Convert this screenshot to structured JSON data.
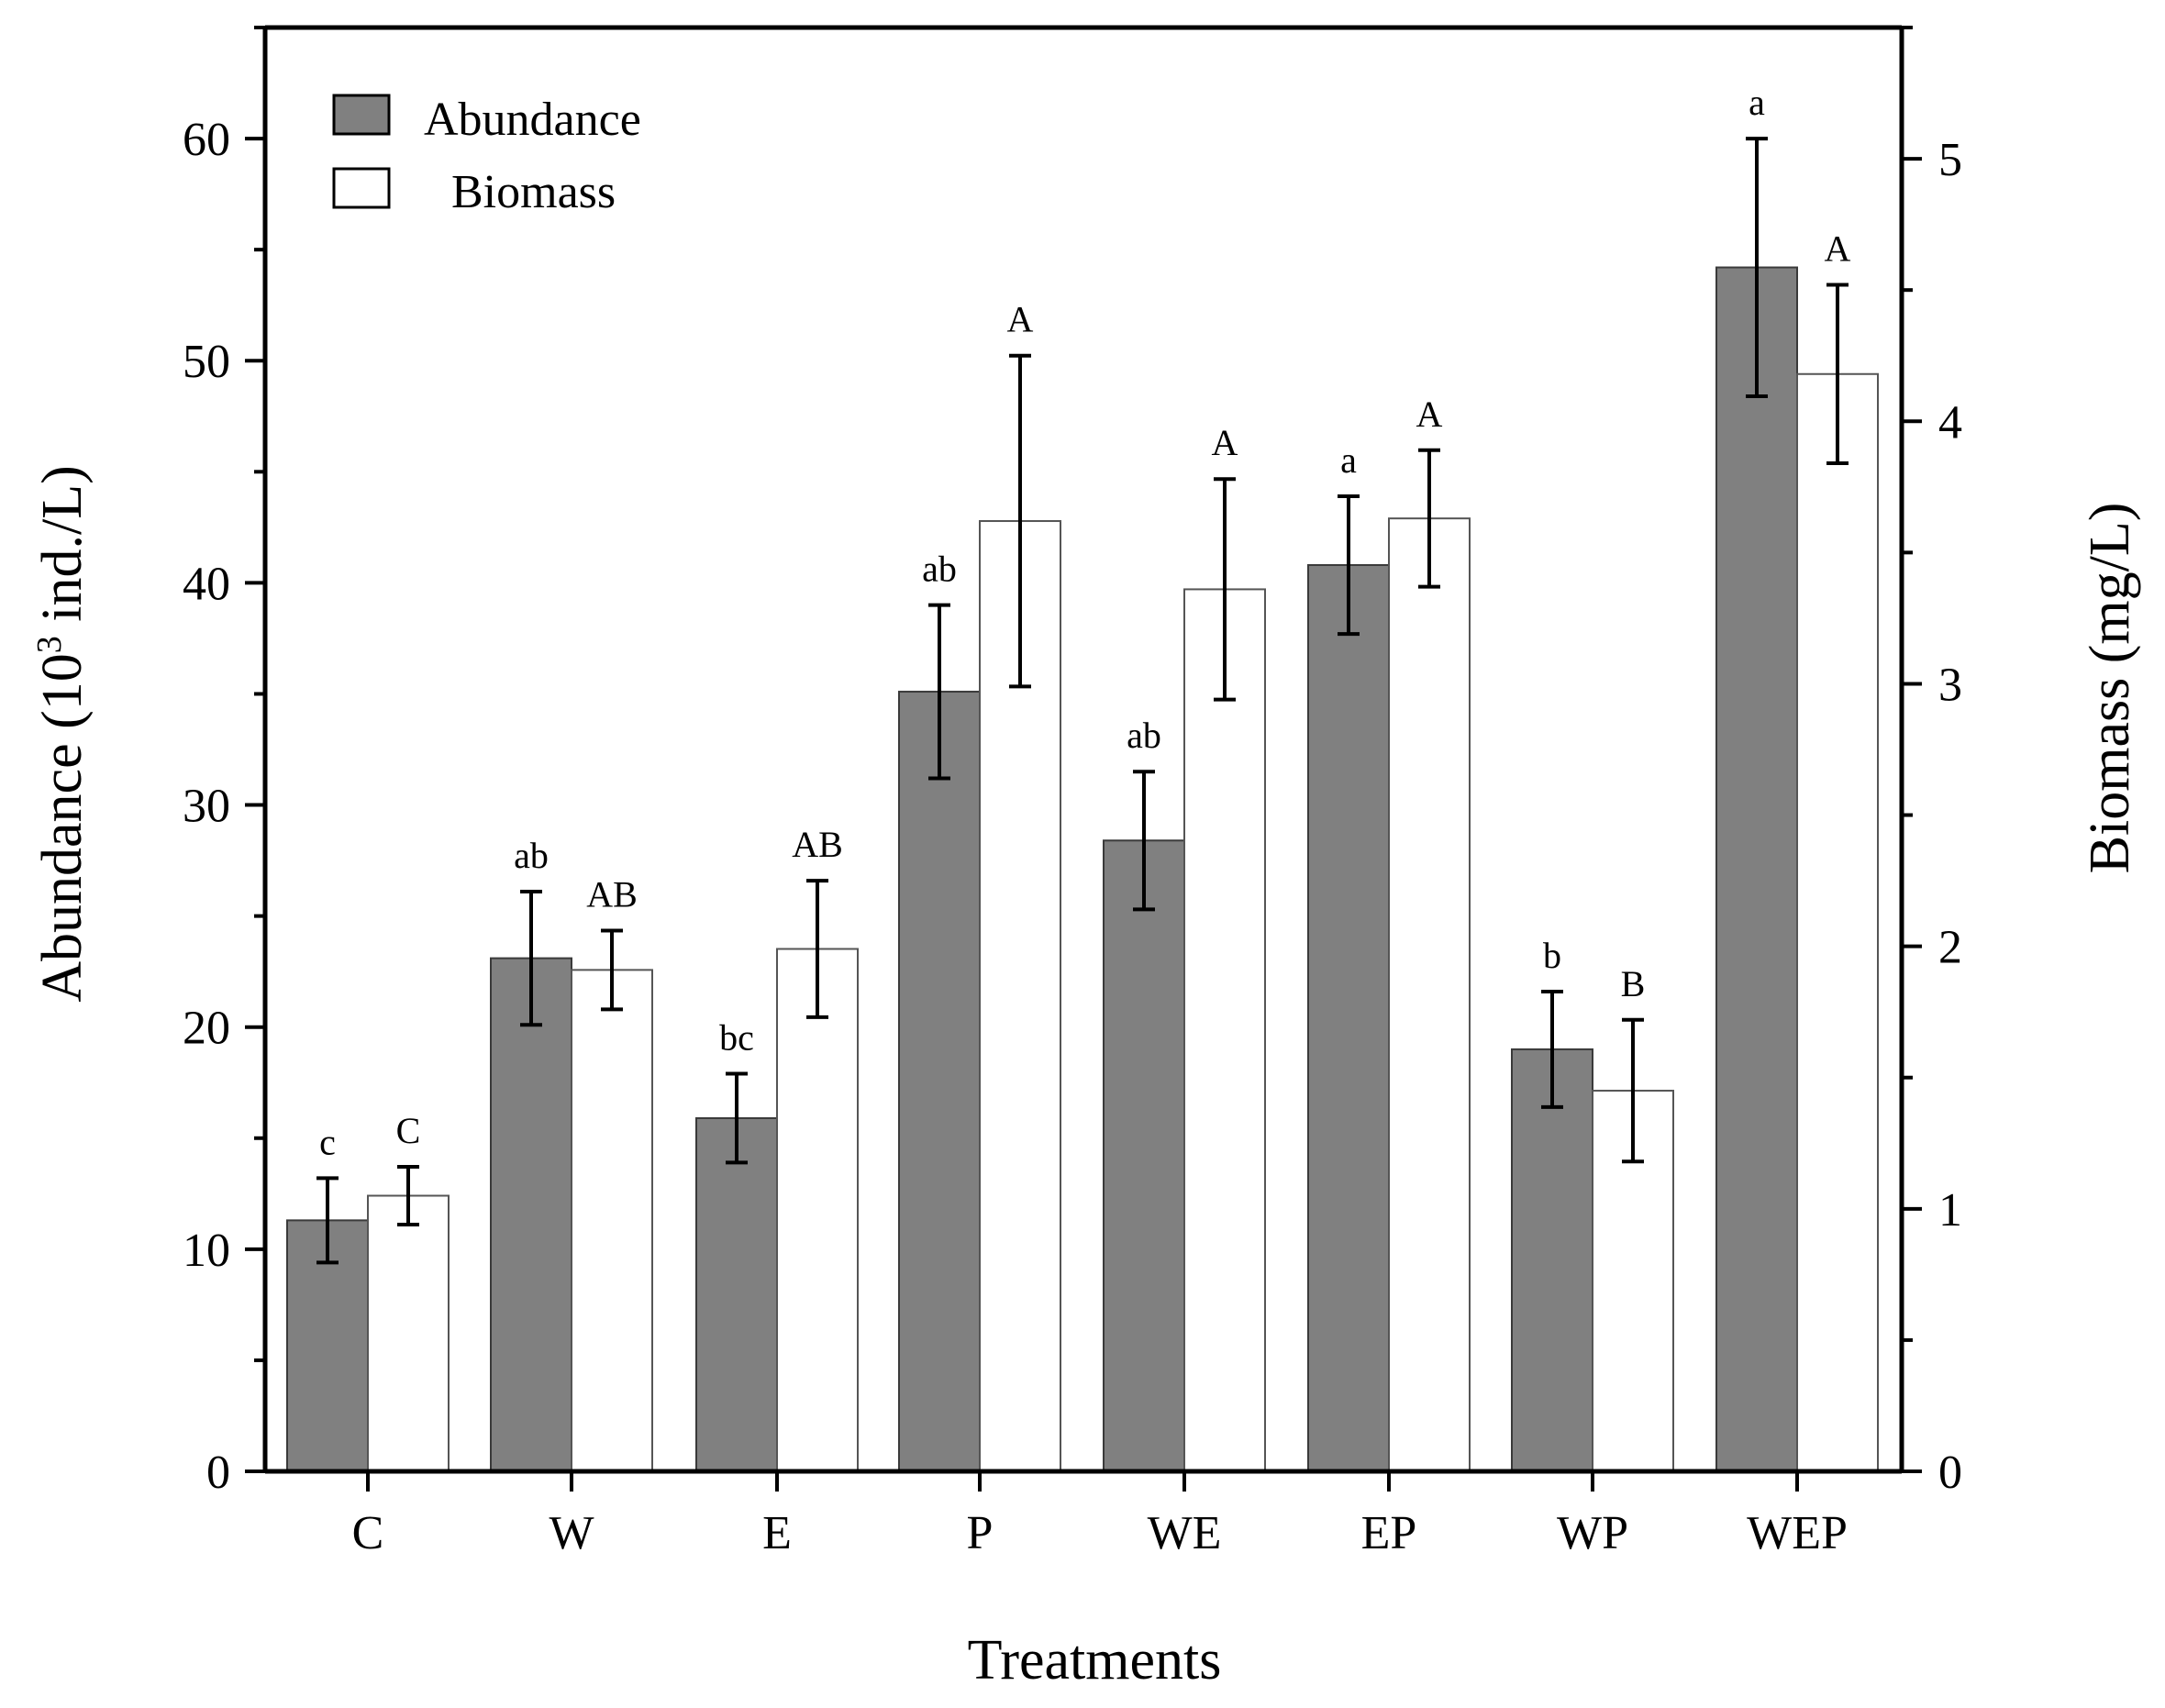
{
  "chart_data": {
    "type": "bar",
    "title": "",
    "xlabel": "Treatments",
    "ylabel": "Abundance (10³ ind./L)",
    "ylabel_parts": {
      "prefix": "Abundance (10",
      "sup": "3",
      "suffix": " ind./L)"
    },
    "y2label": "Biomass (mg/L)",
    "ylim": [
      0,
      65
    ],
    "y2lim": [
      0,
      5.5
    ],
    "yticks": [
      0,
      10,
      20,
      30,
      40,
      50,
      60
    ],
    "y2ticks": [
      0,
      1,
      2,
      3,
      4,
      5
    ],
    "categories": [
      "C",
      "W",
      "E",
      "P",
      "WE",
      "EP",
      "WP",
      "WEP"
    ],
    "series": [
      {
        "name": "Abundance",
        "axis": "left",
        "color": "#808080",
        "values": [
          11.3,
          23.1,
          15.9,
          35.1,
          28.4,
          40.8,
          19.0,
          54.2
        ],
        "errors": [
          1.9,
          3.0,
          2.0,
          3.9,
          3.1,
          3.1,
          2.6,
          5.8
        ],
        "labels": [
          "c",
          "ab",
          "bc",
          "ab",
          "ab",
          "a",
          "b",
          "a"
        ]
      },
      {
        "name": "Biomass",
        "axis": "right",
        "color": "#ffffff",
        "values": [
          1.05,
          1.91,
          1.99,
          3.62,
          3.36,
          3.63,
          1.45,
          4.18
        ],
        "errors": [
          0.11,
          0.15,
          0.26,
          0.63,
          0.42,
          0.26,
          0.27,
          0.34
        ],
        "labels": [
          "C",
          "AB",
          "AB",
          "A",
          "A",
          "A",
          "B",
          "A"
        ]
      }
    ],
    "legend": {
      "position": "top-left",
      "entries": [
        "Abundance",
        "Biomass"
      ]
    }
  }
}
